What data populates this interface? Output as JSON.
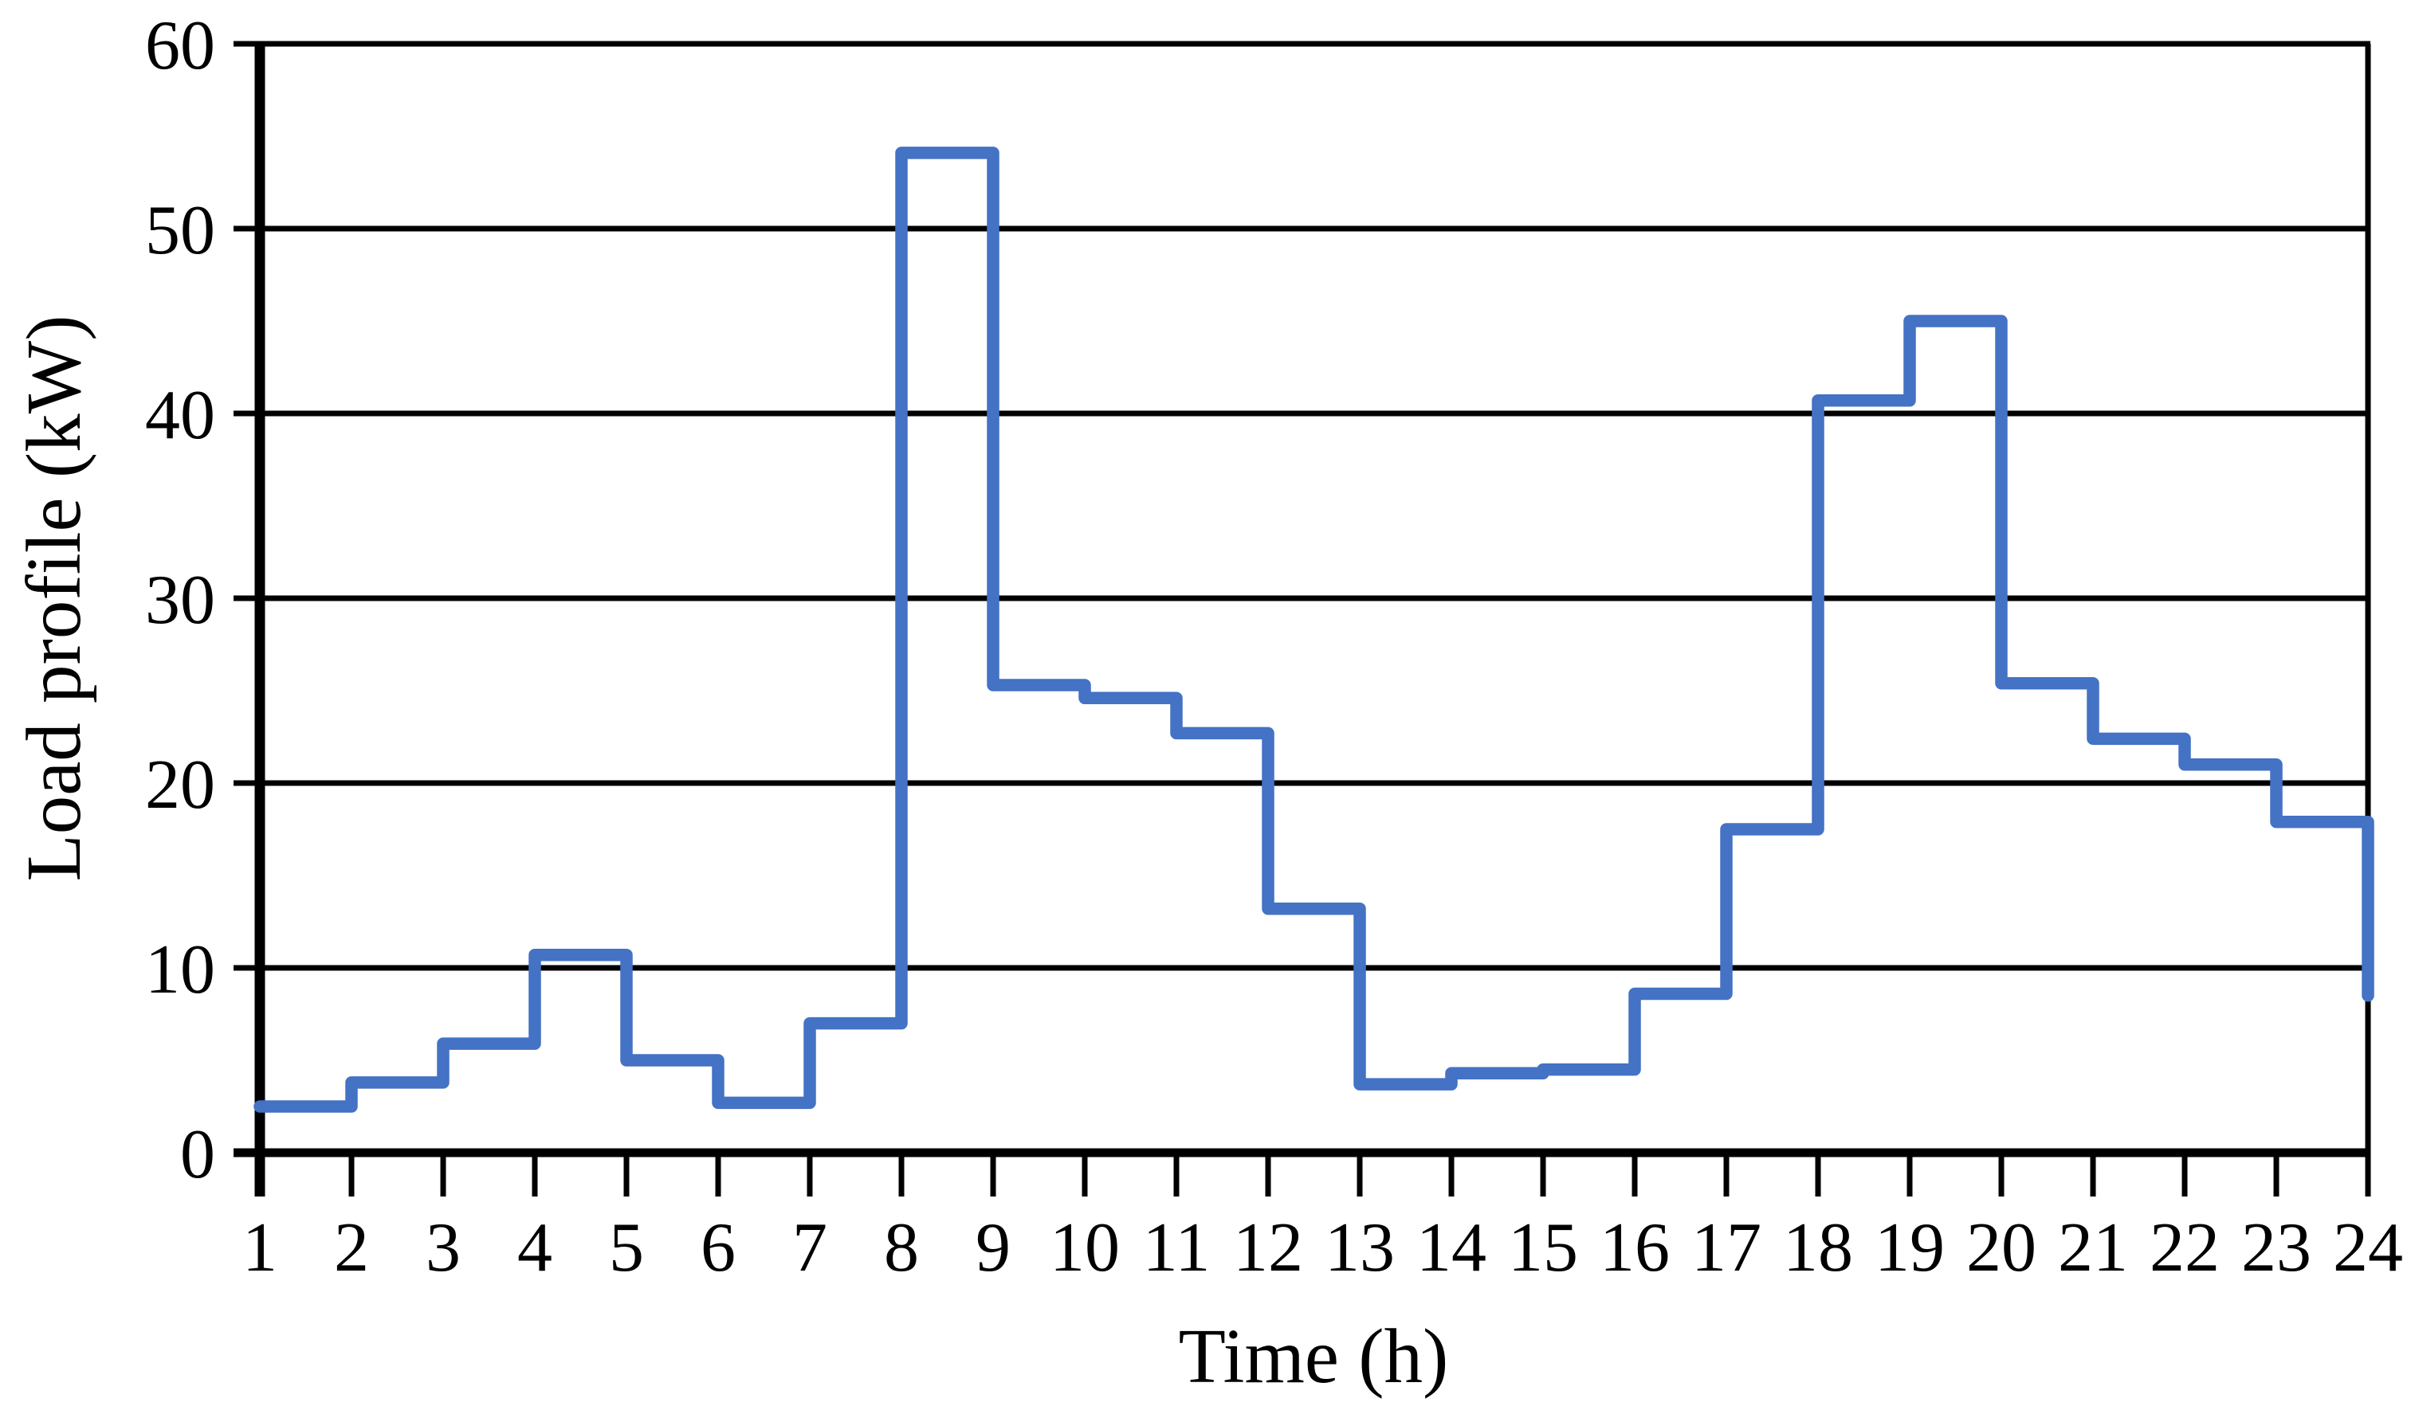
{
  "chart_data": {
    "type": "line",
    "subtype": "step-after",
    "title": "",
    "xlabel": "Time (h)",
    "ylabel": "Load profile (kW)",
    "x": [
      1,
      2,
      3,
      4,
      5,
      6,
      7,
      8,
      9,
      10,
      11,
      12,
      13,
      14,
      15,
      16,
      17,
      18,
      19,
      20,
      21,
      22,
      23,
      24
    ],
    "values": [
      2.5,
      3.8,
      5.9,
      10.7,
      5.0,
      2.7,
      7.0,
      54.1,
      25.3,
      24.6,
      22.7,
      13.2,
      3.7,
      4.3,
      4.5,
      8.6,
      17.5,
      40.7,
      45.0,
      25.4,
      22.4,
      21.0,
      17.9,
      8.5
    ],
    "xlim": [
      1,
      24
    ],
    "ylim": [
      0,
      60
    ],
    "yticks": [
      0,
      10,
      20,
      30,
      40,
      50,
      60
    ],
    "grid": "horizontal",
    "legend": "none",
    "line_color": "#4472C4",
    "axis_color": "#000000",
    "background": "#FFFFFF"
  }
}
